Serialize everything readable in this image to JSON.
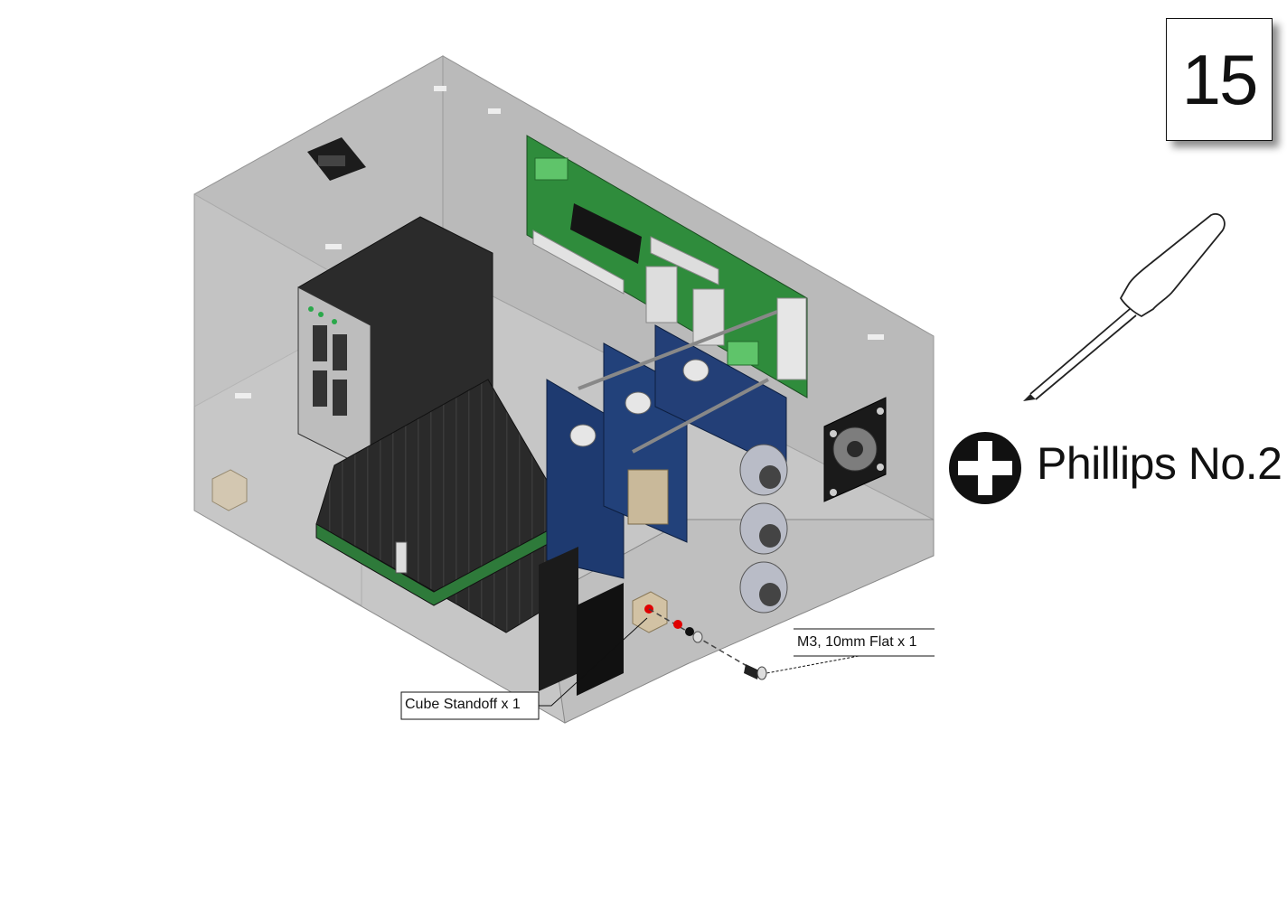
{
  "step": {
    "number": "15"
  },
  "tool": {
    "name": "Phillips No.2",
    "icon": "phillips-head-icon",
    "tool_icon": "screwdriver-icon"
  },
  "callouts": {
    "screw": "M3, 10mm Flat x 1",
    "standoff": "Cube Standoff x 1"
  },
  "colors": {
    "enclosure": "#c4c4c4",
    "pcb_green": "#2e8b3a",
    "pcb_blue": "#1f3a6e",
    "heatsink": "#222222",
    "marker_red": "#e00000"
  }
}
